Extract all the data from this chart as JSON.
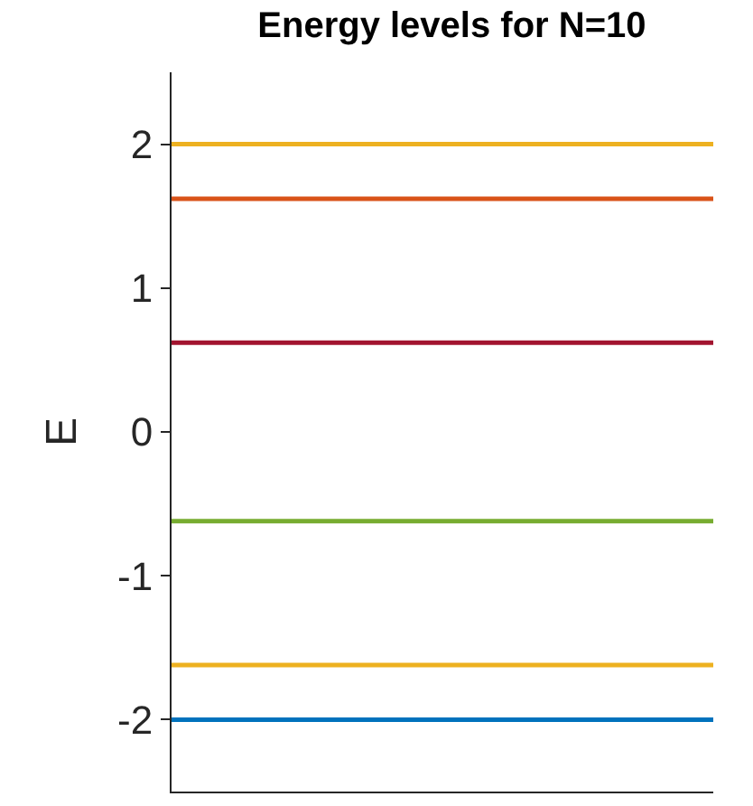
{
  "chart_data": {
    "type": "line",
    "title": "Energy levels for N=10",
    "ylabel": "E",
    "categories": [
      null,
      null,
      null,
      null
    ],
    "series": [
      {
        "color": "#0072bd",
        "values": [
          -2,
          -2,
          -2,
          -2
        ]
      },
      {
        "color": "#edb120",
        "values": [
          -1.62,
          -1.62,
          -1.62,
          -1.62
        ]
      },
      {
        "color": "#77ac30",
        "values": [
          -0.62,
          -0.62,
          -0.62,
          -0.62
        ]
      },
      {
        "color": "#a2142f",
        "values": [
          0.62,
          0.62,
          0.62,
          0.62
        ]
      },
      {
        "color": "#d95319",
        "values": [
          1.62,
          1.62,
          1.62,
          1.62
        ]
      },
      {
        "color": "#edb120",
        "values": [
          2,
          2,
          2,
          2
        ]
      }
    ],
    "ylim": [
      -2.5,
      2.5
    ],
    "yticks": [
      -2,
      -1,
      0,
      1,
      2
    ],
    "marker": "none",
    "line_style": "solid",
    "tick_labels": "y"
  }
}
